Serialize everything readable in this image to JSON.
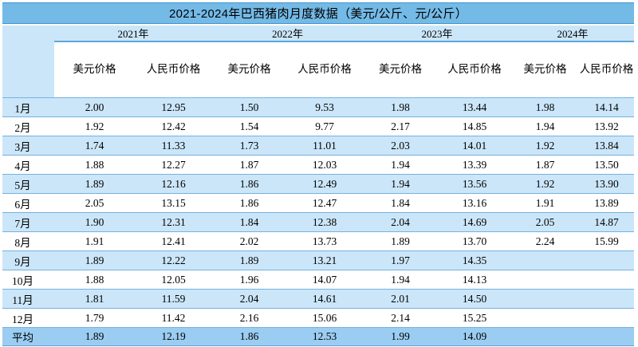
{
  "chart_data": {
    "type": "table",
    "title": "2021-2024年巴西猪肉月度数据（美元/公斤、元/公斤）",
    "year_headers": [
      "2021年",
      "2022年",
      "2023年",
      "2024年"
    ],
    "price_headers": [
      "美元价格",
      "人民币价格",
      "美元价格",
      "人民币价格",
      "美元价格",
      "人民币价格",
      "美元价格",
      "人民币价格"
    ],
    "rows": [
      {
        "label": "1月",
        "values": [
          "2.00",
          "12.95",
          "1.50",
          "9.53",
          "1.98",
          "13.44",
          "1.98",
          "14.14"
        ]
      },
      {
        "label": "2月",
        "values": [
          "1.92",
          "12.42",
          "1.54",
          "9.77",
          "2.17",
          "14.85",
          "1.94",
          "13.92"
        ]
      },
      {
        "label": "3月",
        "values": [
          "1.74",
          "11.33",
          "1.73",
          "11.01",
          "2.03",
          "14.01",
          "1.92",
          "13.84"
        ]
      },
      {
        "label": "4月",
        "values": [
          "1.88",
          "12.27",
          "1.87",
          "12.03",
          "1.94",
          "13.39",
          "1.87",
          "13.50"
        ]
      },
      {
        "label": "5月",
        "values": [
          "1.89",
          "12.16",
          "1.86",
          "12.49",
          "1.94",
          "13.56",
          "1.92",
          "13.90"
        ]
      },
      {
        "label": "6月",
        "values": [
          "2.05",
          "13.15",
          "1.86",
          "12.47",
          "1.84",
          "13.16",
          "1.91",
          "13.89"
        ]
      },
      {
        "label": "7月",
        "values": [
          "1.90",
          "12.31",
          "1.84",
          "12.38",
          "2.04",
          "14.69",
          "2.05",
          "14.87"
        ]
      },
      {
        "label": "8月",
        "values": [
          "1.91",
          "12.41",
          "2.02",
          "13.73",
          "1.89",
          "13.70",
          "2.24",
          "15.99"
        ]
      },
      {
        "label": "9月",
        "values": [
          "1.89",
          "12.22",
          "1.89",
          "13.21",
          "1.97",
          "14.35",
          "",
          ""
        ]
      },
      {
        "label": "10月",
        "values": [
          "1.88",
          "12.05",
          "1.96",
          "14.07",
          "1.94",
          "14.13",
          "",
          ""
        ]
      },
      {
        "label": "11月",
        "values": [
          "1.81",
          "11.59",
          "2.04",
          "14.61",
          "2.01",
          "14.50",
          "",
          ""
        ]
      },
      {
        "label": "12月",
        "values": [
          "1.79",
          "11.42",
          "2.16",
          "15.06",
          "2.14",
          "15.25",
          "",
          ""
        ]
      },
      {
        "label": "平均",
        "values": [
          "1.89",
          "12.19",
          "1.86",
          "12.53",
          "1.99",
          "14.09",
          "",
          ""
        ]
      }
    ],
    "layout": {
      "units": "美元/公斤、元/公斤",
      "columns_per_year": 2,
      "average_row_label": "平均"
    },
    "colors": {
      "title_bar": "#74BAE7",
      "stripe_light_blue": "#CBE6F9",
      "average_row": "#9BCDF2",
      "separator_line": "#74B2E0",
      "text": "#000000"
    }
  }
}
